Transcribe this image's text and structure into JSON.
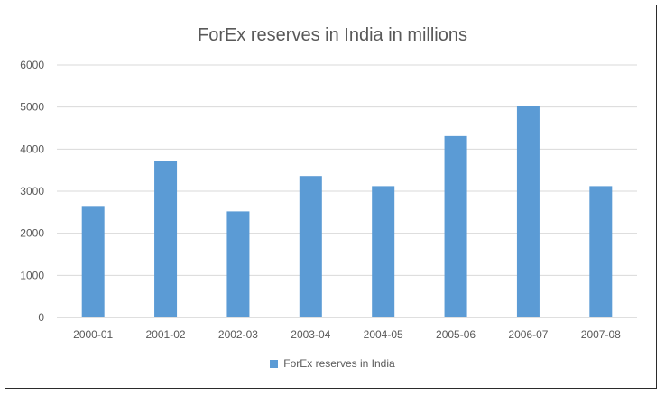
{
  "chart_data": {
    "type": "bar",
    "title": "ForEx reserves in India in millions",
    "categories": [
      "2000-01",
      "2001-02",
      "2002-03",
      "2003-04",
      "2004-05",
      "2005-06",
      "2006-07",
      "2007-08"
    ],
    "series": [
      {
        "name": "ForEx reserves in India",
        "values": [
          2650,
          3720,
          2520,
          3360,
          3120,
          4310,
          5030,
          3120
        ],
        "color": "#5b9bd5"
      }
    ],
    "ylim": [
      0,
      6000
    ],
    "yticks": [
      0,
      1000,
      2000,
      3000,
      4000,
      5000,
      6000
    ],
    "grid": true,
    "legend": "bottom"
  }
}
